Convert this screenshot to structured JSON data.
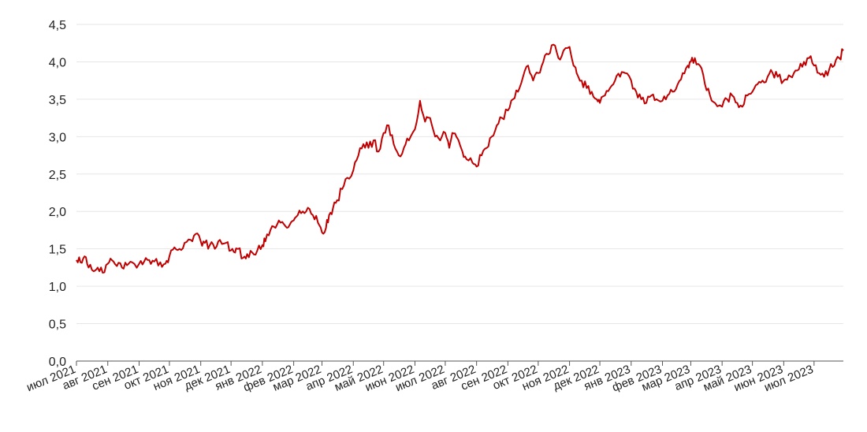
{
  "chart_data": {
    "type": "line",
    "title": "",
    "xlabel": "",
    "ylabel": "",
    "ylim": [
      0,
      4.5
    ],
    "y_ticks": [
      "0,0",
      "0,5",
      "1,0",
      "1,5",
      "2,0",
      "2,5",
      "3,0",
      "3,5",
      "4,0",
      "4,5"
    ],
    "x_ticks": [
      "июл 2021",
      "авг 2021",
      "сен 2021",
      "окт 2021",
      "ноя 2021",
      "дек 2021",
      "янв 2022",
      "фев 2022",
      "мар 2022",
      "апр 2022",
      "май 2022",
      "июн 2022",
      "июл 2022",
      "авг 2022",
      "сен 2022",
      "окт 2022",
      "ноя 2022",
      "дек 2022",
      "янв 2023",
      "фев 2023",
      "мар 2023",
      "апр 2023",
      "май 2023",
      "июн 2023",
      "июл 2023"
    ],
    "grid": true,
    "line_color": "#c00000",
    "series": [
      {
        "x": [
          "2021-07-01",
          "2021-07-05",
          "2021-07-09",
          "2021-07-13",
          "2021-07-18",
          "2021-07-22",
          "2021-07-27",
          "2021-08-01",
          "2021-08-05",
          "2021-08-10",
          "2021-08-15",
          "2021-08-20",
          "2021-08-25",
          "2021-09-01",
          "2021-09-06",
          "2021-09-11",
          "2021-09-16",
          "2021-09-22",
          "2021-09-27",
          "2021-10-01",
          "2021-10-06",
          "2021-10-11",
          "2021-10-16",
          "2021-10-22",
          "2021-10-27",
          "2021-11-01",
          "2021-11-05",
          "2021-11-10",
          "2021-11-15",
          "2021-11-20",
          "2021-11-26",
          "2021-12-01",
          "2021-12-05",
          "2021-12-08",
          "2021-12-13",
          "2021-12-17",
          "2021-12-22",
          "2021-12-27",
          "2022-01-01",
          "2022-01-04",
          "2022-01-09",
          "2022-01-14",
          "2022-01-19",
          "2022-01-24",
          "2022-01-28",
          "2022-02-01",
          "2022-02-05",
          "2022-02-10",
          "2022-02-15",
          "2022-02-20",
          "2022-02-25",
          "2022-03-01",
          "2022-03-05",
          "2022-03-08",
          "2022-03-12",
          "2022-03-16",
          "2022-03-21",
          "2022-03-26",
          "2022-04-01",
          "2022-04-06",
          "2022-04-11",
          "2022-04-16",
          "2022-04-21",
          "2022-04-26",
          "2022-05-01",
          "2022-05-06",
          "2022-05-11",
          "2022-05-16",
          "2022-05-21",
          "2022-05-26",
          "2022-06-01",
          "2022-06-06",
          "2022-06-11",
          "2022-06-16",
          "2022-06-21",
          "2022-06-26",
          "2022-07-01",
          "2022-07-05",
          "2022-07-08",
          "2022-07-12",
          "2022-07-18",
          "2022-07-22",
          "2022-07-28",
          "2022-08-01",
          "2022-08-06",
          "2022-08-11",
          "2022-08-16",
          "2022-08-21",
          "2022-08-26",
          "2022-09-01",
          "2022-09-06",
          "2022-09-11",
          "2022-09-16",
          "2022-09-21",
          "2022-09-26",
          "2022-10-01",
          "2022-10-06",
          "2022-10-11",
          "2022-10-16",
          "2022-10-21",
          "2022-10-26",
          "2022-11-01",
          "2022-11-05",
          "2022-11-08",
          "2022-11-13",
          "2022-11-18",
          "2022-11-23",
          "2022-11-28",
          "2022-12-01",
          "2022-12-06",
          "2022-12-11",
          "2022-12-16",
          "2022-12-21",
          "2022-12-26",
          "2023-01-01",
          "2023-01-06",
          "2023-01-11",
          "2023-01-16",
          "2023-01-21",
          "2023-01-26",
          "2023-02-01",
          "2023-02-06",
          "2023-02-11",
          "2023-02-16",
          "2023-02-21",
          "2023-02-26",
          "2023-03-01",
          "2023-03-05",
          "2023-03-10",
          "2023-03-15",
          "2023-03-20",
          "2023-03-25",
          "2023-04-01",
          "2023-04-06",
          "2023-04-11",
          "2023-04-16",
          "2023-04-21",
          "2023-04-26",
          "2023-05-01",
          "2023-05-06",
          "2023-05-11",
          "2023-05-16",
          "2023-05-21",
          "2023-05-26",
          "2023-06-01",
          "2023-06-06",
          "2023-06-11",
          "2023-06-16",
          "2023-06-21",
          "2023-06-26",
          "2023-07-01",
          "2023-07-06",
          "2023-07-11",
          "2023-07-16",
          "2023-07-21",
          "2023-07-26",
          "2023-07-30"
        ],
        "y": [
          1.35,
          1.32,
          1.4,
          1.25,
          1.2,
          1.25,
          1.18,
          1.3,
          1.35,
          1.27,
          1.25,
          1.28,
          1.32,
          1.3,
          1.33,
          1.35,
          1.33,
          1.32,
          1.3,
          1.4,
          1.52,
          1.5,
          1.58,
          1.62,
          1.7,
          1.6,
          1.58,
          1.55,
          1.5,
          1.62,
          1.58,
          1.48,
          1.45,
          1.5,
          1.38,
          1.43,
          1.45,
          1.48,
          1.55,
          1.6,
          1.75,
          1.78,
          1.85,
          1.8,
          1.82,
          1.88,
          1.95,
          2.0,
          2.05,
          1.95,
          1.85,
          1.72,
          1.78,
          1.95,
          2.05,
          2.15,
          2.3,
          2.45,
          2.55,
          2.75,
          2.9,
          2.85,
          2.95,
          2.8,
          3.05,
          3.15,
          2.9,
          2.75,
          2.85,
          2.95,
          3.1,
          3.48,
          3.2,
          3.25,
          3.0,
          2.95,
          3.05,
          2.85,
          3.05,
          3.0,
          2.8,
          2.7,
          2.65,
          2.6,
          2.75,
          2.85,
          3.0,
          3.15,
          3.25,
          3.35,
          3.5,
          3.6,
          3.8,
          3.95,
          3.75,
          3.85,
          4.0,
          4.1,
          4.23,
          4.05,
          4.15,
          4.2,
          3.95,
          3.85,
          3.75,
          3.65,
          3.6,
          3.5,
          3.45,
          3.55,
          3.65,
          3.75,
          3.8,
          3.85,
          3.75,
          3.6,
          3.5,
          3.45,
          3.55,
          3.5,
          3.48,
          3.55,
          3.6,
          3.7,
          3.85,
          3.95,
          4.0,
          4.05,
          3.95,
          3.7,
          3.55,
          3.45,
          3.4,
          3.5,
          3.55,
          3.45,
          3.4,
          3.55,
          3.6,
          3.7,
          3.75,
          3.8,
          3.85,
          3.8,
          3.75,
          3.82,
          3.85,
          3.9,
          4.0,
          4.05,
          3.95,
          3.85,
          3.8,
          3.9,
          3.95,
          4.05,
          4.15
        ]
      }
    ]
  }
}
